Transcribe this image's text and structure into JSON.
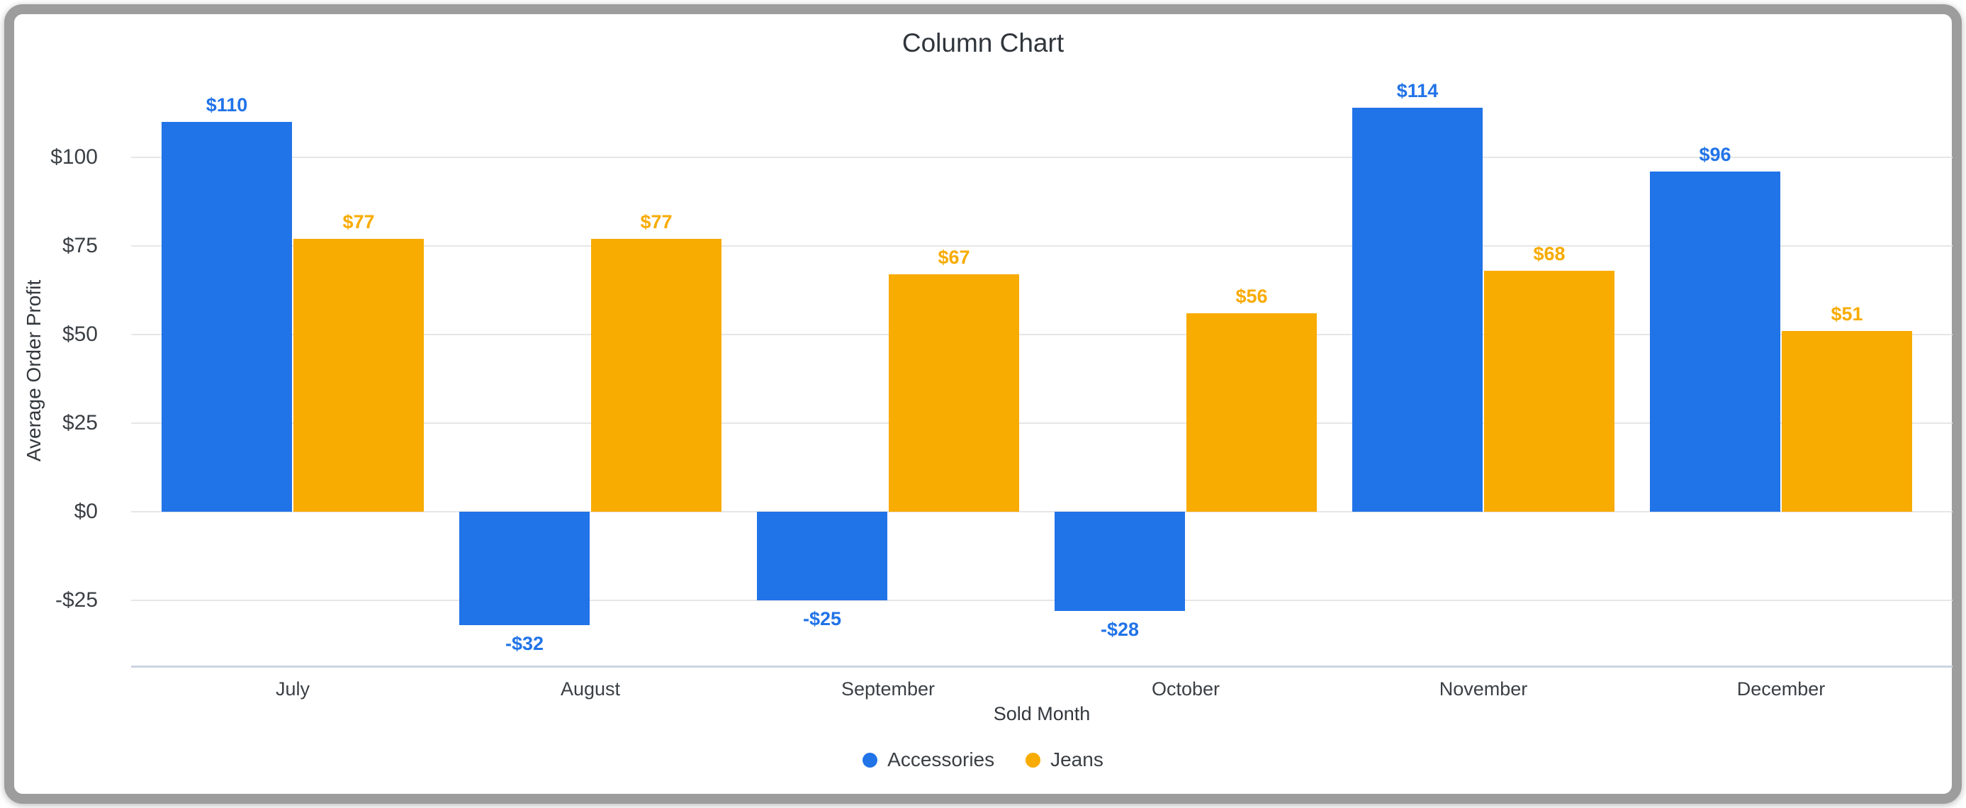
{
  "title": "Column Chart",
  "axes": {
    "y_title": "Average Order Profit",
    "x_title": "Sold Month"
  },
  "legend": {
    "position": "bottom",
    "items": [
      {
        "label": "Accessories",
        "color": "#2173e8"
      },
      {
        "label": "Jeans",
        "color": "#f8ab00"
      }
    ]
  },
  "colors": {
    "accessories": "#2173e8",
    "jeans": "#f8ab00",
    "gridline": "#e6e6e6",
    "axis_baseline": "#ccd4e3",
    "frame_border": "#9d9d9d",
    "text_dark": "#2f353b",
    "text_axis": "#3b4045"
  },
  "chart_data": {
    "type": "bar",
    "title": "Column Chart",
    "xlabel": "Sold Month",
    "ylabel": "Average Order Profit",
    "categories": [
      "July",
      "August",
      "September",
      "October",
      "November",
      "December"
    ],
    "series": [
      {
        "name": "Accessories",
        "color": "#2173e8",
        "values": [
          110,
          -32,
          -25,
          -28,
          114,
          96
        ],
        "labels": [
          "$110",
          "-$32",
          "-$25",
          "-$28",
          "$114",
          "$96"
        ]
      },
      {
        "name": "Jeans",
        "color": "#f8ab00",
        "values": [
          77,
          77,
          67,
          56,
          68,
          51
        ],
        "labels": [
          "$77",
          "$77",
          "$67",
          "$56",
          "$68",
          "$51"
        ]
      }
    ],
    "y_ticks": [
      {
        "value": 100,
        "label": "$100"
      },
      {
        "value": 75,
        "label": "$75"
      },
      {
        "value": 50,
        "label": "$50"
      },
      {
        "value": 25,
        "label": "$25"
      },
      {
        "value": 0,
        "label": "$0"
      },
      {
        "value": -25,
        "label": "-$25"
      }
    ],
    "ylim": [
      -44,
      123
    ],
    "grid": true,
    "legend_position": "bottom"
  }
}
